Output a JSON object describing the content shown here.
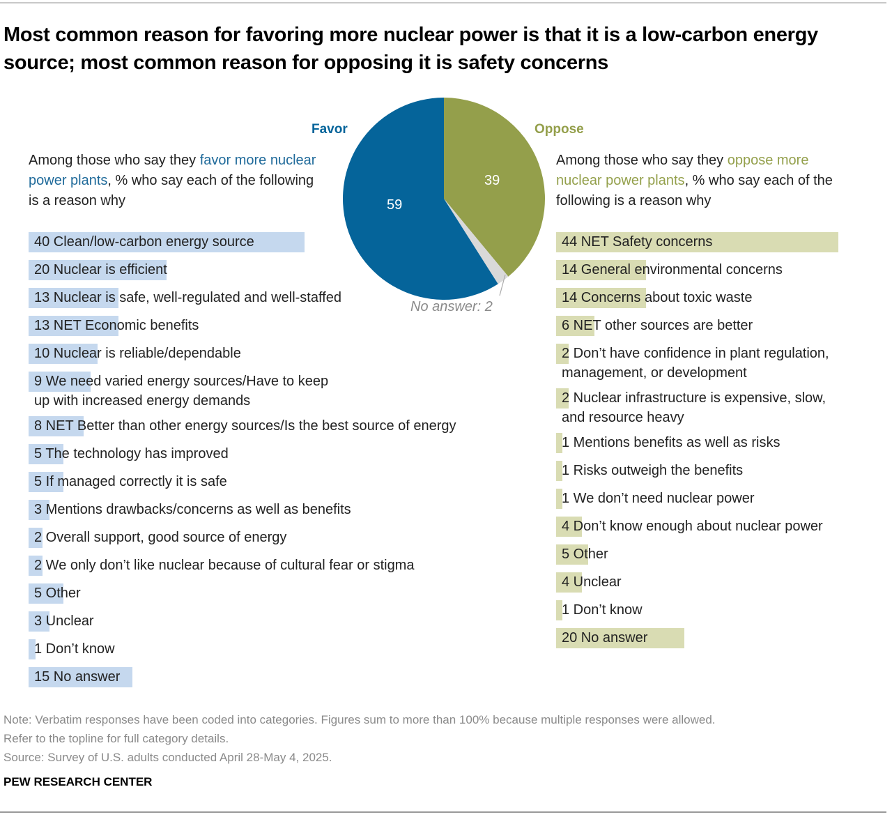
{
  "header": {
    "title": "Most common reason for favoring more nuclear power is that it is a low-carbon energy source; most common reason for opposing it is safety concerns"
  },
  "pie": {
    "favor_label": "Favor",
    "oppose_label": "Oppose",
    "favor_value": "59",
    "oppose_value": "39",
    "no_answer_label": "No answer: 2",
    "colors": {
      "favor": "#05649a",
      "oppose": "#949f4b",
      "no_answer": "#d9d9d9"
    }
  },
  "favor_intro": {
    "pre": "Among those who say they ",
    "highlight": "favor more nuclear power plants",
    "post": ", % who say each of the following is a reason why"
  },
  "oppose_intro": {
    "pre": "Among those who say they ",
    "highlight": "oppose more nuclear power plants",
    "post": ", % who say each of the following is a reason why"
  },
  "favor_reasons": [
    {
      "value": 40,
      "label": "40 Clean/low-carbon energy source"
    },
    {
      "value": 20,
      "label": "20 Nuclear is efficient"
    },
    {
      "value": 13,
      "label": "13 Nuclear is safe, well-regulated and well-staffed"
    },
    {
      "value": 13,
      "label": "13 NET Economic benefits"
    },
    {
      "value": 10,
      "label": "10 Nuclear is reliable/dependable"
    },
    {
      "value": 9,
      "label": "9 We need varied energy sources/Have to keep\nup with increased energy demands"
    },
    {
      "value": 8,
      "label": "8 NET Better than other energy sources/Is the best source of energy"
    },
    {
      "value": 5,
      "label": "5 The technology has improved"
    },
    {
      "value": 5,
      "label": "5 If managed correctly it is safe"
    },
    {
      "value": 3,
      "label": "3 Mentions drawbacks/concerns as well as benefits"
    },
    {
      "value": 2,
      "label": "2 Overall support, good source of energy"
    },
    {
      "value": 2,
      "label": "2 We only don’t like nuclear because of cultural fear or stigma"
    },
    {
      "value": 5,
      "label": "5 Other"
    },
    {
      "value": 3,
      "label": "3 Unclear"
    },
    {
      "value": 1,
      "label": "1 Don’t know"
    },
    {
      "value": 15,
      "label": "15 No answer"
    }
  ],
  "oppose_reasons": [
    {
      "value": 44,
      "label": "44 NET Safety concerns"
    },
    {
      "value": 14,
      "label": "14 General environmental concerns"
    },
    {
      "value": 14,
      "label": "14 Concerns about toxic waste"
    },
    {
      "value": 6,
      "label": "6 NET other sources are better"
    },
    {
      "value": 2,
      "label": "2 Don’t have confidence in plant regulation,\nmanagement, or development"
    },
    {
      "value": 2,
      "label": "2 Nuclear infrastructure is expensive, slow,\nand resource heavy"
    },
    {
      "value": 1,
      "label": "1 Mentions benefits as well as risks"
    },
    {
      "value": 1,
      "label": "1 Risks outweigh the benefits"
    },
    {
      "value": 1,
      "label": "1 We don’t need nuclear power"
    },
    {
      "value": 4,
      "label": "4 Don’t know enough about nuclear power"
    },
    {
      "value": 5,
      "label": "5 Other"
    },
    {
      "value": 4,
      "label": "4 Unclear"
    },
    {
      "value": 1,
      "label": "1 Don’t know"
    },
    {
      "value": 20,
      "label": "20 No answer"
    }
  ],
  "footer": {
    "note_line1": "Note: Verbatim responses have been coded into categories. Figures sum to more than 100% because multiple responses were allowed.",
    "note_line2": "Refer to the topline for full category details.",
    "source": "Source: Survey of U.S. adults conducted April 28-May 4, 2025.",
    "brand": "PEW RESEARCH CENTER"
  },
  "chart_data": [
    {
      "type": "pie",
      "title": "Favor vs. oppose more nuclear power plants",
      "categories": [
        "Favor",
        "Oppose",
        "No answer"
      ],
      "values": [
        59,
        39,
        2
      ],
      "colors": [
        "#05649a",
        "#949f4b",
        "#d9d9d9"
      ]
    },
    {
      "type": "bar",
      "orientation": "horizontal",
      "title": "Among those who say they favor more nuclear power plants, % who say each of the following is a reason why",
      "categories": [
        "Clean/low-carbon energy source",
        "Nuclear is efficient",
        "Nuclear is safe, well-regulated and well-staffed",
        "NET Economic benefits",
        "Nuclear is reliable/dependable",
        "We need varied energy sources/Have to keep up with increased energy demands",
        "NET Better than other energy sources/Is the best source of energy",
        "The technology has improved",
        "If managed correctly it is safe",
        "Mentions drawbacks/concerns as well as benefits",
        "Overall support, good source of energy",
        "We only don’t like nuclear because of cultural fear or stigma",
        "Other",
        "Unclear",
        "Don’t know",
        "No answer"
      ],
      "values": [
        40,
        20,
        13,
        13,
        10,
        9,
        8,
        5,
        5,
        3,
        2,
        2,
        5,
        3,
        1,
        15
      ],
      "color": "#c5d8ee"
    },
    {
      "type": "bar",
      "orientation": "horizontal",
      "title": "Among those who say they oppose more nuclear power plants, % who say each of the following is a reason why",
      "categories": [
        "NET Safety concerns",
        "General environmental concerns",
        "Concerns about toxic waste",
        "NET other sources are better",
        "Don’t have confidence in plant regulation, management, or development",
        "Nuclear infrastructure is expensive, slow, and resource heavy",
        "Mentions benefits as well as risks",
        "Risks outweigh the benefits",
        "We don’t need nuclear power",
        "Don’t know enough about nuclear power",
        "Other",
        "Unclear",
        "Don’t know",
        "No answer"
      ],
      "values": [
        44,
        14,
        14,
        6,
        2,
        2,
        1,
        1,
        1,
        4,
        5,
        4,
        1,
        20
      ],
      "color": "#d9dcb3"
    }
  ]
}
